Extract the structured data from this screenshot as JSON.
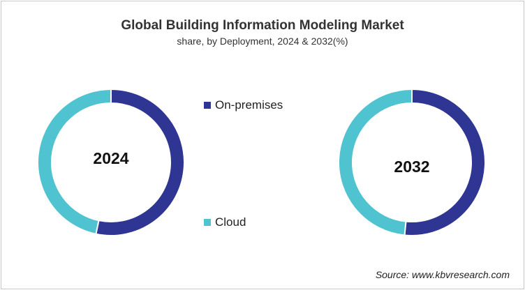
{
  "chart_data": {
    "type": "pie",
    "title": "Global Building Information Modeling Market",
    "subtitle": "share, by Deployment, 2024 & 2032(%)",
    "legend": [
      {
        "name": "On-premises",
        "color": "#2e3592"
      },
      {
        "name": "Cloud",
        "color": "#4fc3cf"
      }
    ],
    "charts": [
      {
        "label": "2024",
        "values": [
          53.3,
          46.7
        ]
      },
      {
        "label": "2032",
        "values": [
          51.6,
          48.4
        ]
      }
    ],
    "legend_placement": "center"
  },
  "source": "Source: www.kbvresearch.com"
}
